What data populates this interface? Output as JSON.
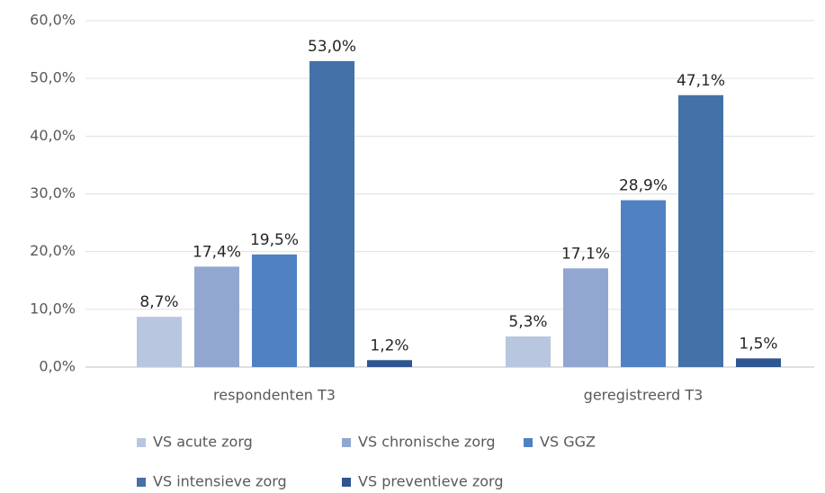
{
  "chart_data": {
    "type": "bar",
    "categories": [
      "respondenten T3",
      "geregistreerd  T3"
    ],
    "series": [
      {
        "name": "VS acute zorg",
        "color": "#b8c6df",
        "values": [
          8.7,
          5.3
        ],
        "value_labels": [
          "8,7%",
          "5,3%"
        ]
      },
      {
        "name": "VS chronische zorg",
        "color": "#91a7d0",
        "values": [
          17.4,
          17.1
        ],
        "value_labels": [
          "17,4%",
          "17,1%"
        ]
      },
      {
        "name": "VS GGZ",
        "color": "#4f81c3",
        "values": [
          19.5,
          28.9
        ],
        "value_labels": [
          "19,5%",
          "28,9%"
        ]
      },
      {
        "name": "VS intensieve zorg",
        "color": "#4471a8",
        "values": [
          53.0,
          47.1
        ],
        "value_labels": [
          "53,0%",
          "47,1%"
        ]
      },
      {
        "name": "VS preventieve zorg",
        "color": "#2f5690",
        "values": [
          1.2,
          1.5
        ],
        "value_labels": [
          "1,2%",
          "1,5%"
        ]
      }
    ],
    "ylim": [
      0,
      60
    ],
    "yticks": [
      {
        "value": 0,
        "label": "0,0%"
      },
      {
        "value": 10,
        "label": "10,0%"
      },
      {
        "value": 20,
        "label": "20,0%"
      },
      {
        "value": 30,
        "label": "30,0%"
      },
      {
        "value": 40,
        "label": "40,0%"
      },
      {
        "value": 50,
        "label": "50,0%"
      },
      {
        "value": 60,
        "label": "60,0%"
      }
    ],
    "grid": true,
    "legend": "bottom"
  }
}
